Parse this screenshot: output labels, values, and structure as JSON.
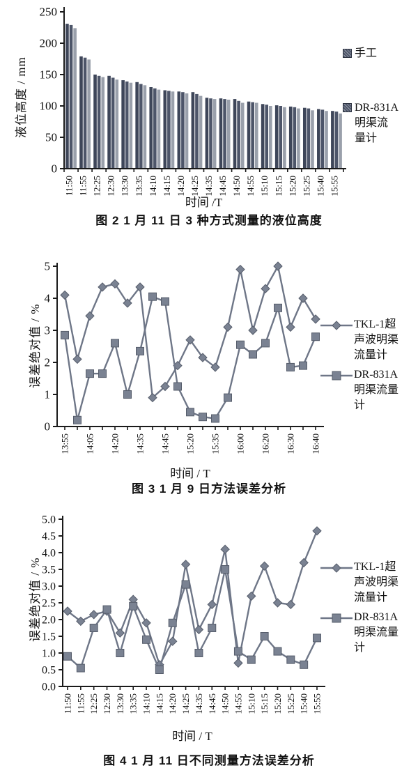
{
  "colors": {
    "axis": "#1a1a1a",
    "line_series": "#6e7687",
    "marker_fill": "#7a8292",
    "marker_stroke": "#565d6b",
    "bar_colors": [
      "#3e4659",
      "#4d5569",
      "#9aa0ab"
    ],
    "text": "#111111"
  },
  "chart_data": [
    {
      "type": "bar",
      "title": "图 2  1 月 11 日 3 种方式测量的液位高度",
      "xlabel": "时间 /T",
      "ylabel": "液位高度 / mm",
      "ylim": [
        0,
        250
      ],
      "yticks": [
        0,
        50,
        100,
        150,
        200,
        250
      ],
      "grid": false,
      "legend_position": "right",
      "categories": [
        "11:50",
        "11:55",
        "12:25",
        "12:30",
        "13:30",
        "13:35",
        "14:10",
        "14:15",
        "14:20",
        "14:25",
        "14:35",
        "14:45",
        "14:50",
        "14:55",
        "15:10",
        "15:15",
        "15:20",
        "15:25",
        "15:40",
        "15:55"
      ],
      "legend_entries": [
        {
          "label": "手工",
          "marker": "square-swatch"
        },
        {
          "label": "DR-831A\n明渠流\n量计",
          "marker": "square-swatch"
        }
      ],
      "series": [
        {
          "name": "手工",
          "values": [
            231,
            179,
            150,
            148,
            141,
            138,
            130,
            125,
            123,
            122,
            113,
            112,
            111,
            107,
            103,
            101,
            99,
            97,
            95,
            92
          ]
        },
        {
          "name": "",
          "values": [
            229,
            177,
            148,
            145,
            139,
            135,
            128,
            124,
            122,
            119,
            112,
            111,
            108,
            106,
            102,
            100,
            98,
            96,
            94,
            91
          ]
        },
        {
          "name": "DR-831A明渠流量计",
          "values": [
            224,
            174,
            146,
            142,
            137,
            133,
            126,
            123,
            120,
            116,
            111,
            110,
            105,
            105,
            100,
            98,
            96,
            93,
            92,
            88
          ]
        }
      ]
    },
    {
      "type": "line",
      "title": "图 3  1 月 9 日方法误差分析",
      "xlabel": "时间 / T",
      "ylabel": "误差绝对值 / %",
      "ylim": [
        0,
        5
      ],
      "yticks": [
        0,
        1,
        2,
        3,
        4,
        5
      ],
      "grid": false,
      "legend_position": "right",
      "x_tick_labels": [
        "13:55",
        "",
        "14:05",
        "",
        "14:20",
        "",
        "14:35",
        "",
        "14:45",
        "",
        "15:20",
        "",
        "15:35",
        "",
        "16:00",
        "",
        "16:20",
        "",
        "16:30",
        "",
        "16:40"
      ],
      "legend_entries": [
        {
          "label": "TKL-1超\n声波明渠\n流量计",
          "marker": "diamond"
        },
        {
          "label": "DR-831A\n明渠流量\n计",
          "marker": "square"
        }
      ],
      "series": [
        {
          "name": "TKL-1超声波明渠流量计",
          "marker": "diamond",
          "values": [
            4.1,
            2.1,
            3.45,
            4.35,
            4.45,
            3.85,
            4.35,
            0.9,
            1.25,
            1.9,
            2.7,
            2.15,
            1.85,
            3.1,
            4.9,
            3.0,
            4.3,
            5.0,
            3.1,
            4.0,
            3.35
          ]
        },
        {
          "name": "DR-831A明渠流量计",
          "marker": "square",
          "values": [
            2.85,
            0.2,
            1.65,
            1.65,
            2.6,
            1.0,
            2.35,
            4.05,
            3.9,
            1.25,
            0.45,
            0.3,
            0.25,
            0.9,
            2.55,
            2.25,
            2.6,
            3.7,
            1.85,
            1.9,
            2.8
          ]
        }
      ]
    },
    {
      "type": "line",
      "title": "图 4  1 月 11 日不同测量方法误差分析",
      "xlabel": "时间 / T",
      "ylabel": "误差绝对值 / %",
      "ylim": [
        0,
        5
      ],
      "yticks": [
        "0.0",
        "0.5",
        "1.0",
        "1.5",
        "2.0",
        "2.5",
        "3.0",
        "3.5",
        "4.0",
        "4.5",
        "5.0"
      ],
      "grid": false,
      "legend_position": "right",
      "x_tick_labels": [
        "11:50",
        "11:55",
        "12:25",
        "12:30",
        "13:30",
        "13:35",
        "14:10",
        "14:15",
        "14:20",
        "14:25",
        "14:35",
        "14:45",
        "14:50",
        "14:55",
        "15:10",
        "15:15",
        "15:20",
        "15:25",
        "15:40",
        "15:55"
      ],
      "legend_entries": [
        {
          "label": "TKL-1超\n声波明渠\n流量计",
          "marker": "diamond"
        },
        {
          "label": "DR-831A\n明渠流量\n计",
          "marker": "square"
        }
      ],
      "series": [
        {
          "name": "TKL-1超声波明渠流量计",
          "marker": "diamond",
          "values": [
            2.25,
            1.95,
            2.15,
            2.25,
            1.6,
            2.6,
            1.9,
            0.65,
            1.35,
            3.65,
            1.7,
            2.45,
            4.1,
            0.7,
            2.7,
            3.6,
            2.5,
            2.45,
            3.7,
            4.65
          ]
        },
        {
          "name": "DR-831A明渠流量计",
          "marker": "square",
          "values": [
            0.9,
            0.55,
            1.75,
            2.3,
            1.0,
            2.4,
            1.4,
            0.5,
            1.9,
            3.05,
            1.0,
            1.75,
            3.5,
            1.05,
            0.8,
            1.5,
            1.05,
            0.8,
            0.65,
            1.45
          ]
        }
      ]
    }
  ]
}
